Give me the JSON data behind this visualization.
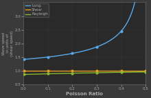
{
  "xlabel": "Poisson Ratio",
  "ylabel": "Wave speed\nin units of\n(shear speed)",
  "legend_labels": [
    "Long.",
    "Shear",
    "Rayleigh"
  ],
  "legend_colors": [
    "#5aabee",
    "#e8a020",
    "#8aba30"
  ],
  "nu_min": 0.0,
  "nu_max": 0.5,
  "xlim": [
    0.0,
    0.5
  ],
  "ylim": [
    0.5,
    3.5
  ],
  "yticks": [
    0.5,
    1.0,
    1.5,
    2.0,
    2.5,
    3.0
  ],
  "xticks": [
    0.0,
    0.1,
    0.2,
    0.3,
    0.4,
    0.5
  ],
  "background_color": "#3a3a3a",
  "plot_bg_color": "#2a2a2a",
  "grid_color": "#555555",
  "text_color": "#aaaaaa",
  "spine_color": "#666666",
  "line_width": 1.0,
  "marker_size": 2.0,
  "title_fontsize": 5,
  "label_fontsize": 5,
  "tick_fontsize": 4,
  "legend_fontsize": 4
}
